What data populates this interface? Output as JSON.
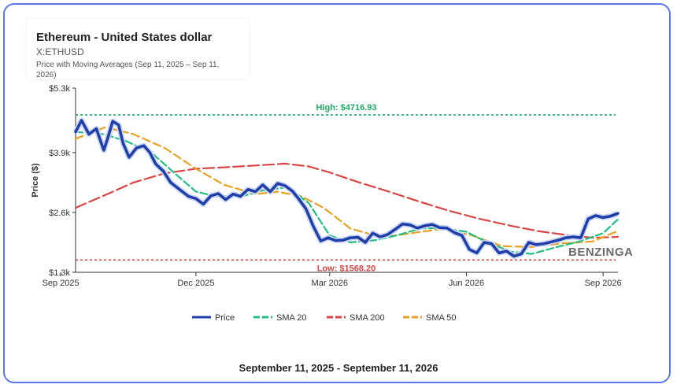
{
  "title": "Ethereum - United States dollar",
  "subtitle": "X:ETHUSD",
  "description": "Price with Moving Averages (Sep 11, 2025 – Sep 11, 2026)",
  "footer": "September 11, 2025 - September 11, 2026",
  "brand": "BENZINGA",
  "colors": {
    "frame": "#5a78e8",
    "price": "#1f3ea8",
    "sma20": "#1fbf83",
    "sma200": "#d94444",
    "sma50": "#e8a020",
    "high": "#1faa64",
    "low": "#d94444"
  },
  "chart_data": {
    "type": "line",
    "xlabel": "",
    "ylabel": "Price ($)",
    "x_range": [
      "2025-09-11",
      "2026-09-11"
    ],
    "ylim": [
      1300,
      5300
    ],
    "y_ticks": [
      {
        "value": 5300,
        "label": "$5.3k"
      },
      {
        "value": 3900,
        "label": "$3.9k"
      },
      {
        "value": 2600,
        "label": "$2.6k"
      },
      {
        "value": 1300,
        "label": "$1.3k"
      }
    ],
    "x_ticks": [
      {
        "date": "2025-09-01",
        "label": "Sep 2025"
      },
      {
        "date": "2025-12-01",
        "label": "Dec 2025"
      },
      {
        "date": "2026-03-01",
        "label": "Mar 2026"
      },
      {
        "date": "2026-06-01",
        "label": "Jun 2026"
      },
      {
        "date": "2026-09-01",
        "label": "Sep 2026"
      }
    ],
    "reference_lines": [
      {
        "name": "high",
        "value": 4716.93,
        "label": "High: $4716.93"
      },
      {
        "name": "low",
        "value": 1568.2,
        "label": "Low: $1568.20"
      }
    ],
    "legend": [
      "Price",
      "SMA 20",
      "SMA 200",
      "SMA 50"
    ],
    "legend_position": "bottom",
    "series": [
      {
        "name": "Price",
        "key": "price",
        "width": 3.5,
        "x": [
          "2025-09-11",
          "2025-09-15",
          "2025-09-20",
          "2025-09-25",
          "2025-09-30",
          "2025-10-03",
          "2025-10-06",
          "2025-10-10",
          "2025-10-13",
          "2025-10-17",
          "2025-10-22",
          "2025-10-27",
          "2025-10-31",
          "2025-11-04",
          "2025-11-09",
          "2025-11-14",
          "2025-11-20",
          "2025-11-26",
          "2025-12-01",
          "2025-12-06",
          "2025-12-11",
          "2025-12-16",
          "2025-12-21",
          "2025-12-26",
          "2025-12-31",
          "2026-01-05",
          "2026-01-10",
          "2026-01-15",
          "2026-01-20",
          "2026-01-25",
          "2026-01-30",
          "2026-02-04",
          "2026-02-08",
          "2026-02-13",
          "2026-02-18",
          "2026-02-23",
          "2026-02-28",
          "2026-03-05",
          "2026-03-10",
          "2026-03-15",
          "2026-03-20",
          "2026-03-25",
          "2026-03-30",
          "2026-04-04",
          "2026-04-09",
          "2026-04-14",
          "2026-04-19",
          "2026-04-24",
          "2026-04-29",
          "2026-05-04",
          "2026-05-09",
          "2026-05-14",
          "2026-05-19",
          "2026-05-24",
          "2026-05-29",
          "2026-06-03",
          "2026-06-08",
          "2026-06-13",
          "2026-06-18",
          "2026-06-23",
          "2026-06-28",
          "2026-07-03",
          "2026-07-08",
          "2026-07-13",
          "2026-07-18",
          "2026-07-23",
          "2026-07-28",
          "2026-08-02",
          "2026-08-07",
          "2026-08-12",
          "2026-08-17",
          "2026-08-22",
          "2026-08-27",
          "2026-09-01",
          "2026-09-06",
          "2026-09-11"
        ],
        "values": [
          4350,
          4600,
          4300,
          4420,
          3950,
          4250,
          4580,
          4500,
          4100,
          3800,
          4000,
          4050,
          3900,
          3650,
          3500,
          3250,
          3100,
          2950,
          2900,
          2780,
          2960,
          3010,
          2880,
          3000,
          2950,
          3100,
          3050,
          3200,
          3050,
          3230,
          3180,
          3060,
          2900,
          2680,
          2300,
          1980,
          2050,
          1990,
          2000,
          2050,
          2060,
          1950,
          2150,
          2070,
          2120,
          2230,
          2350,
          2330,
          2260,
          2310,
          2340,
          2270,
          2260,
          2160,
          2100,
          1800,
          1720,
          1950,
          1920,
          1720,
          1760,
          1650,
          1700,
          1950,
          1900,
          1920,
          1960,
          2000,
          2050,
          2070,
          2050,
          2460,
          2530,
          2490,
          2520,
          2580
        ]
      },
      {
        "name": "SMA 20",
        "key": "sma20",
        "width": 2.2,
        "dash": "9,4",
        "x": [
          "2025-09-11",
          "2025-09-30",
          "2025-10-15",
          "2025-11-01",
          "2025-11-15",
          "2025-12-01",
          "2025-12-15",
          "2026-01-01",
          "2026-01-15",
          "2026-02-01",
          "2026-02-15",
          "2026-03-01",
          "2026-03-15",
          "2026-04-01",
          "2026-04-15",
          "2026-05-01",
          "2026-05-15",
          "2026-06-01",
          "2026-06-15",
          "2026-07-01",
          "2026-07-15",
          "2026-08-01",
          "2026-08-15",
          "2026-09-01",
          "2026-09-11"
        ],
        "values": [
          4350,
          4300,
          4150,
          3900,
          3500,
          3050,
          2950,
          2950,
          3080,
          3150,
          2800,
          2100,
          1950,
          2000,
          2100,
          2250,
          2260,
          2180,
          1950,
          1750,
          1700,
          1850,
          1960,
          2150,
          2450
        ]
      },
      {
        "name": "SMA 200",
        "key": "sma200",
        "width": 2.2,
        "dash": "14,5",
        "x": [
          "2025-09-11",
          "2025-10-01",
          "2025-10-20",
          "2025-11-10",
          "2025-12-01",
          "2025-12-20",
          "2026-01-10",
          "2026-01-30",
          "2026-02-15",
          "2026-03-01",
          "2026-03-20",
          "2026-04-10",
          "2026-05-01",
          "2026-05-20",
          "2026-06-10",
          "2026-07-01",
          "2026-07-20",
          "2026-08-10",
          "2026-08-25",
          "2026-09-11"
        ],
        "values": [
          2700,
          2980,
          3250,
          3450,
          3550,
          3580,
          3620,
          3660,
          3600,
          3470,
          3260,
          3050,
          2830,
          2640,
          2460,
          2310,
          2190,
          2100,
          2050,
          2070
        ]
      },
      {
        "name": "SMA 50",
        "key": "sma50",
        "width": 2.2,
        "dash": "10,5",
        "x": [
          "2025-09-11",
          "2025-10-01",
          "2025-10-20",
          "2025-11-10",
          "2025-12-01",
          "2025-12-20",
          "2026-01-10",
          "2026-01-25",
          "2026-02-10",
          "2026-02-25",
          "2026-03-15",
          "2026-04-05",
          "2026-04-25",
          "2026-05-15",
          "2026-06-05",
          "2026-06-25",
          "2026-07-15",
          "2026-08-05",
          "2026-08-25",
          "2026-09-11"
        ],
        "values": [
          4200,
          4450,
          4300,
          4000,
          3550,
          3200,
          3000,
          3050,
          2950,
          2700,
          2250,
          2060,
          2150,
          2240,
          2100,
          1870,
          1850,
          1930,
          1970,
          2200
        ]
      }
    ]
  }
}
